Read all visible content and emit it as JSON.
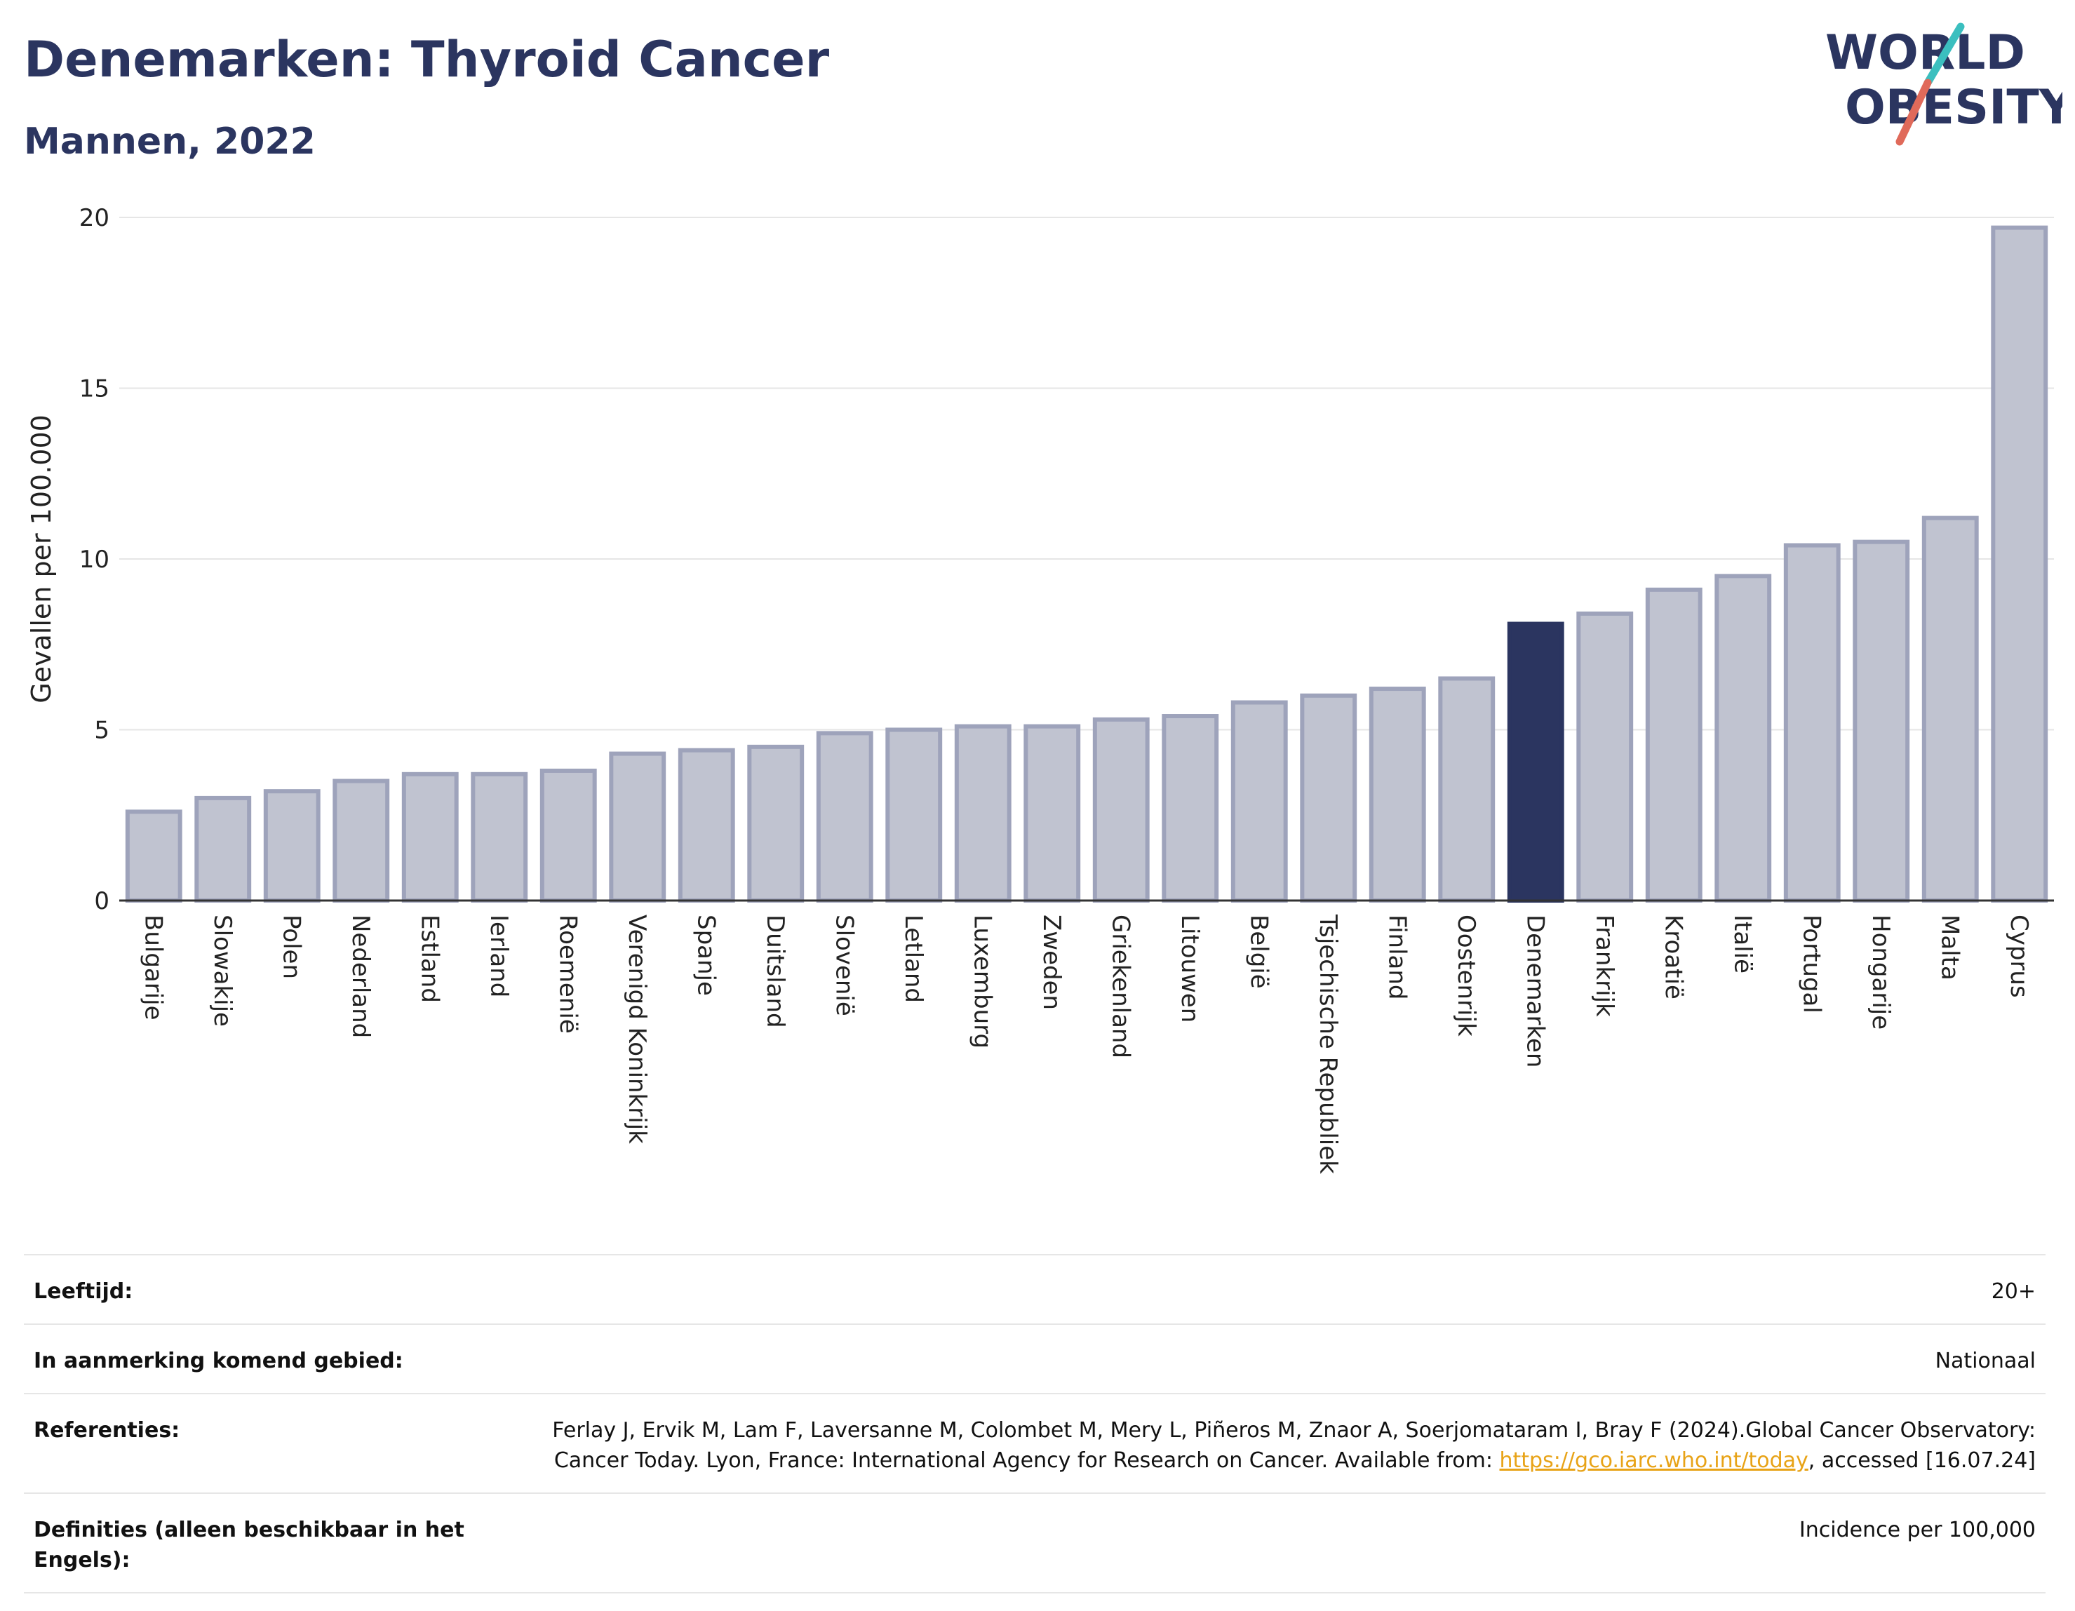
{
  "header": {
    "title": "Denemarken: Thyroid Cancer",
    "subtitle": "Mannen, 2022"
  },
  "logo": {
    "line1": "WORLD",
    "line2": "OBESITY",
    "accent_colors": [
      "#3bbfbf",
      "#e06a5a"
    ],
    "text_color": "#2b3560"
  },
  "chart_data": {
    "type": "bar",
    "ylabel": "Gevallen per 100.000",
    "xlabel": "",
    "ylim": [
      0,
      20
    ],
    "yticks": [
      0,
      5,
      10,
      15,
      20
    ],
    "grid": true,
    "highlight": "Denemarken",
    "colors": {
      "bar": "#c0c3d0",
      "bar_border": "#9ea3bb",
      "highlight": "#2b3560"
    },
    "categories": [
      "Bulgarije",
      "Slowakije",
      "Polen",
      "Nederland",
      "Estland",
      "Ierland",
      "Roemenië",
      "Verenigd Koninkrijk",
      "Spanje",
      "Duitsland",
      "Slovenië",
      "Letland",
      "Luxemburg",
      "Zweden",
      "Griekenland",
      "Litouwen",
      "België",
      "Tsjechische Republiek",
      "Finland",
      "Oostenrijk",
      "Denemarken",
      "Frankrijk",
      "Kroatië",
      "Italië",
      "Portugal",
      "Hongarije",
      "Malta",
      "Cyprus"
    ],
    "values": [
      2.6,
      3.0,
      3.2,
      3.5,
      3.7,
      3.7,
      3.8,
      4.3,
      4.4,
      4.5,
      4.9,
      5.0,
      5.1,
      5.1,
      5.3,
      5.4,
      5.8,
      6.0,
      6.2,
      6.5,
      8.1,
      8.4,
      9.1,
      9.5,
      10.4,
      10.5,
      11.2,
      19.7
    ]
  },
  "meta": {
    "age_label": "Leeftijd:",
    "age_value": "20+",
    "area_label": "In aanmerking komend gebied:",
    "area_value": "Nationaal",
    "refs_label": "Referenties:",
    "refs_text": "Ferlay J, Ervik M, Lam F, Laversanne M, Colombet M, Mery L, Piñeros M, Znaor A, Soerjomataram I, Bray F (2024).Global Cancer Observatory: Cancer Today. Lyon, France: International Agency for Research on Cancer. Available from: ",
    "refs_link": "https://gco.iarc.who.int/today",
    "refs_suffix": ", accessed [16.07.24]",
    "def_label": "Definities (alleen beschikbaar in het Engels):",
    "def_value": "Incidence per 100,000"
  }
}
